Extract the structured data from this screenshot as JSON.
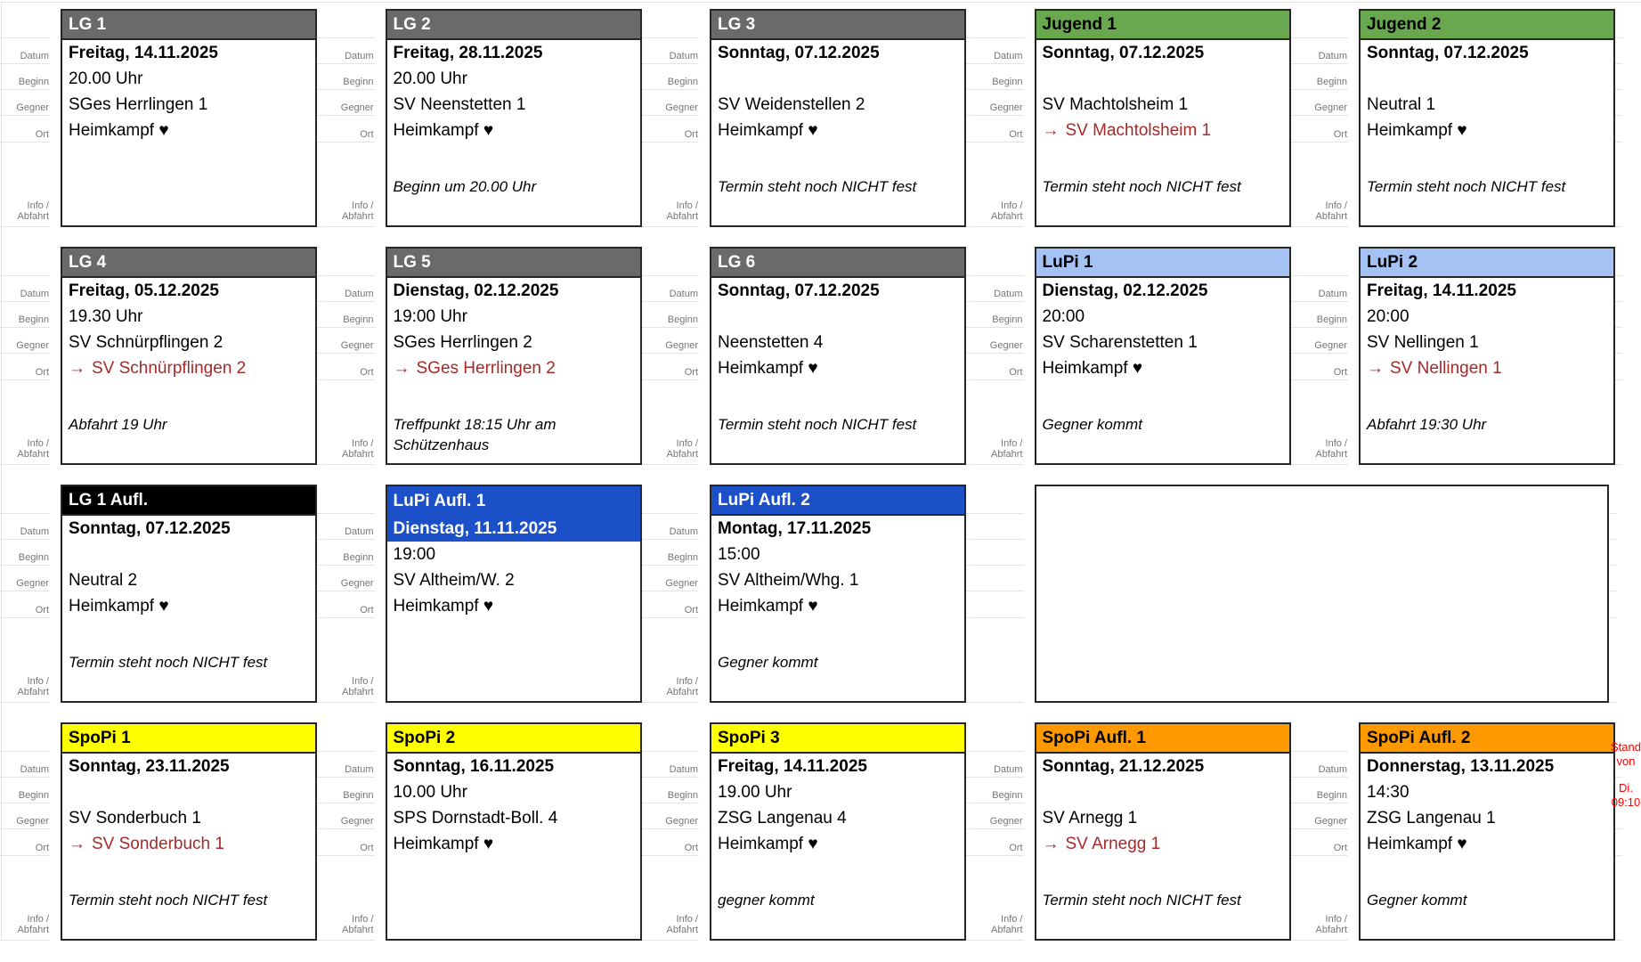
{
  "labels": {
    "datum": "Datum",
    "beginn": "Beginn",
    "gegner": "Gegner",
    "ort": "Ort",
    "info_abfahrt": "Info /\nAbfahrt"
  },
  "icons": {
    "home_heart": "♥",
    "away_arrow": "→"
  },
  "strings": {
    "home_location": "Heimkampf"
  },
  "away_color": "#a52a2a",
  "stand_note": {
    "line1": "Stand von",
    "line2": "Di. 09:10",
    "color": "#ff0000"
  },
  "variants": {
    "lg": {
      "bg": "#6a6a6a",
      "fg": "#ffffff"
    },
    "jugend": {
      "bg": "#6aa84f",
      "fg": "#000000"
    },
    "lupi": {
      "bg": "#a4c2f4",
      "fg": "#000000"
    },
    "lg-aufl": {
      "bg": "#000000",
      "fg": "#ffffff"
    },
    "lupi-aufl": {
      "bg": "#1c50c8",
      "fg": "#ffffff"
    },
    "spopi": {
      "bg": "#ffff00",
      "fg": "#000000"
    },
    "spopi-aufl": {
      "bg": "#ff9900",
      "fg": "#000000"
    }
  },
  "rows": [
    {
      "cells": [
        {
          "title": "LG 1",
          "variant": "lg",
          "datum": "Freitag, 14.11.2025",
          "beginn": "20.00 Uhr",
          "gegner": "SGes Herrlingen 1",
          "ort": {
            "kind": "home"
          },
          "info": ""
        },
        {
          "title": "LG 2",
          "variant": "lg",
          "datum": "Freitag, 28.11.2025",
          "beginn": "20.00 Uhr",
          "gegner": "SV Neenstetten 1",
          "ort": {
            "kind": "home"
          },
          "info": "Beginn um 20.00 Uhr"
        },
        {
          "title": "LG 3",
          "variant": "lg",
          "datum": "Sonntag, 07.12.2025",
          "beginn": "",
          "gegner": "SV Weidenstellen 2",
          "ort": {
            "kind": "home"
          },
          "info": "Termin steht noch NICHT fest"
        },
        {
          "title": "Jugend 1",
          "variant": "jugend",
          "datum": "Sonntag, 07.12.2025",
          "beginn": "",
          "gegner": "SV Machtolsheim 1",
          "ort": {
            "kind": "away",
            "team": "SV Machtolsheim 1"
          },
          "info": "Termin steht noch NICHT fest"
        },
        {
          "title": "Jugend 2",
          "variant": "jugend",
          "datum": "Sonntag, 07.12.2025",
          "beginn": "",
          "gegner": "Neutral 1",
          "ort": {
            "kind": "home"
          },
          "info": "Termin steht noch NICHT fest"
        }
      ]
    },
    {
      "cells": [
        {
          "title": "LG 4",
          "variant": "lg",
          "datum": "Freitag, 05.12.2025",
          "beginn": "19.30 Uhr",
          "gegner": "SV Schnürpflingen 2",
          "ort": {
            "kind": "away",
            "team": "SV Schnürpflingen 2"
          },
          "info": "Abfahrt 19 Uhr"
        },
        {
          "title": "LG 5",
          "variant": "lg",
          "datum": "Dienstag, 02.12.2025",
          "beginn": "19:00 Uhr",
          "gegner": "SGes Herrlingen 2",
          "ort": {
            "kind": "away",
            "team": "SGes Herrlingen 2"
          },
          "info": "Treffpunkt 18:15 Uhr am Schützenhaus"
        },
        {
          "title": "LG 6",
          "variant": "lg",
          "datum": "Sonntag, 07.12.2025",
          "beginn": "",
          "gegner": "Neenstetten 4",
          "ort": {
            "kind": "home"
          },
          "info": "Termin steht noch NICHT fest"
        },
        {
          "title": "LuPi 1",
          "variant": "lupi",
          "datum": "Dienstag, 02.12.2025",
          "beginn": "20:00",
          "gegner": "SV Scharenstetten 1",
          "ort": {
            "kind": "home"
          },
          "info": "Gegner kommt"
        },
        {
          "title": "LuPi 2",
          "variant": "lupi",
          "datum": "Freitag, 14.11.2025",
          "beginn": "20:00",
          "gegner": "SV Nellingen 1",
          "ort": {
            "kind": "away",
            "team": "SV Nellingen 1"
          },
          "info": "Abfahrt 19:30 Uhr"
        }
      ]
    },
    {
      "cells": [
        {
          "title": "LG 1 Aufl.",
          "variant": "lg-aufl",
          "datum": "Sonntag, 07.12.2025",
          "beginn": "",
          "gegner": "Neutral 2",
          "ort": {
            "kind": "home"
          },
          "info": "Termin steht noch NICHT fest"
        },
        {
          "title": "LuPi Aufl. 1",
          "variant": "lupi-aufl",
          "datum": "Dienstag, 11.11.2025",
          "datum_highlight": true,
          "beginn": "19:00",
          "gegner": "SV Altheim/W. 2",
          "ort": {
            "kind": "home"
          },
          "info": ""
        },
        {
          "title": "LuPi Aufl. 2",
          "variant": "lupi-aufl",
          "datum": "Montag, 17.11.2025",
          "beginn": "15:00",
          "gegner": "SV Altheim/Whg. 1",
          "ort": {
            "kind": "home"
          },
          "info": "Gegner kommt"
        },
        {
          "empty": true,
          "span": 2
        }
      ]
    },
    {
      "cells": [
        {
          "title": "SpoPi 1",
          "variant": "spopi",
          "datum": "Sonntag, 23.11.2025",
          "beginn": "",
          "gegner": "SV Sonderbuch 1",
          "ort": {
            "kind": "away",
            "team": "SV Sonderbuch 1"
          },
          "info": "Termin steht noch NICHT fest"
        },
        {
          "title": "SpoPi 2",
          "variant": "spopi",
          "datum": "Sonntag, 16.11.2025",
          "beginn": "10.00 Uhr",
          "gegner": "SPS Dornstadt-Boll. 4",
          "ort": {
            "kind": "home"
          },
          "info": ""
        },
        {
          "title": "SpoPi 3",
          "variant": "spopi",
          "datum": "Freitag, 14.11.2025",
          "beginn": "19.00 Uhr",
          "gegner": "ZSG Langenau 4",
          "ort": {
            "kind": "home"
          },
          "info": "gegner kommt"
        },
        {
          "title": "SpoPi Aufl. 1",
          "variant": "spopi-aufl",
          "datum": "Sonntag, 21.12.2025",
          "beginn": "",
          "gegner": "SV Arnegg 1",
          "ort": {
            "kind": "away",
            "team": "SV Arnegg 1"
          },
          "info": "Termin steht noch NICHT fest"
        },
        {
          "title": "SpoPi Aufl. 2",
          "variant": "spopi-aufl",
          "datum": "Donnerstag, 13.11.2025",
          "beginn": "14:30",
          "gegner": "ZSG Langenau 1",
          "ort": {
            "kind": "home"
          },
          "info": "Gegner kommt"
        }
      ]
    }
  ]
}
